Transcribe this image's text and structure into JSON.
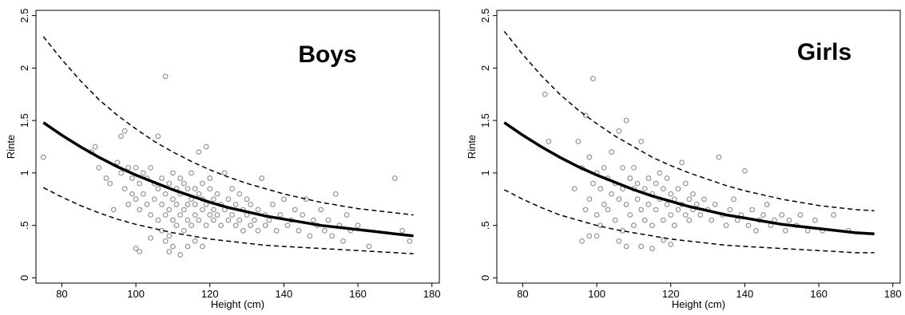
{
  "chart_data": [
    {
      "type": "scatter",
      "title": "Boys",
      "xlabel": "Height (cm)",
      "ylabel": "Rinte",
      "xlim": [
        73,
        182
      ],
      "ylim": [
        -0.05,
        2.55
      ],
      "xticks": [
        "80",
        "100",
        "120",
        "140",
        "160",
        "180"
      ],
      "yticks": [
        "0",
        ".5",
        "1",
        "1.5",
        "2",
        "2.5"
      ],
      "grid": false,
      "series": [
        {
          "kind": "points",
          "x": [
            75,
            88,
            89,
            90,
            92,
            93,
            94,
            95,
            96,
            96,
            97,
            97,
            98,
            98,
            99,
            99,
            100,
            100,
            101,
            101,
            102,
            102,
            103,
            103,
            104,
            104,
            105,
            105,
            106,
            106,
            106,
            107,
            107,
            107,
            108,
            108,
            108,
            109,
            109,
            109,
            110,
            110,
            110,
            111,
            111,
            111,
            112,
            112,
            112,
            113,
            113,
            113,
            114,
            114,
            114,
            115,
            115,
            115,
            116,
            116,
            116,
            117,
            117,
            117,
            118,
            118,
            118,
            119,
            119,
            119,
            120,
            120,
            120,
            121,
            121,
            121,
            122,
            122,
            123,
            123,
            124,
            124,
            125,
            125,
            126,
            126,
            127,
            127,
            128,
            128,
            129,
            129,
            130,
            130,
            131,
            131,
            132,
            133,
            133,
            134,
            135,
            135,
            136,
            137,
            138,
            139,
            140,
            141,
            142,
            143,
            144,
            145,
            146,
            147,
            148,
            149,
            150,
            151,
            152,
            153,
            154,
            155,
            156,
            157,
            158,
            160,
            163,
            170,
            172,
            174,
            108,
            104,
            109,
            110,
            112,
            101,
            114,
            100,
            116,
            118
          ],
          "y": [
            1.15,
            1.2,
            1.25,
            1.05,
            0.95,
            0.9,
            0.65,
            1.1,
            1.0,
            1.35,
            0.85,
            1.4,
            1.05,
            0.7,
            0.95,
            0.8,
            1.05,
            0.75,
            0.9,
            0.65,
            1.0,
            0.8,
            0.95,
            0.7,
            1.05,
            0.6,
            0.9,
            0.75,
            0.85,
            1.35,
            0.55,
            0.95,
            0.7,
            0.45,
            1.92,
            0.8,
            0.6,
            0.9,
            0.65,
            0.4,
            1.0,
            0.75,
            0.55,
            0.85,
            0.7,
            0.5,
            0.95,
            0.6,
            0.8,
            0.9,
            0.65,
            0.45,
            0.85,
            0.7,
            0.55,
            1.0,
            0.75,
            0.5,
            0.85,
            0.6,
            0.7,
            1.2,
            0.8,
            0.55,
            0.9,
            0.65,
            0.75,
            1.25,
            0.7,
            0.5,
            0.85,
            0.6,
            0.95,
            0.75,
            0.55,
            0.65,
            0.8,
            0.6,
            0.7,
            0.5,
            1.0,
            0.65,
            0.75,
            0.55,
            0.85,
            0.6,
            0.7,
            0.5,
            0.8,
            0.55,
            0.65,
            0.45,
            0.75,
            0.6,
            0.7,
            0.5,
            0.55,
            0.65,
            0.45,
            0.95,
            0.6,
            0.5,
            0.55,
            0.7,
            0.45,
            0.6,
            0.75,
            0.5,
            0.55,
            0.65,
            0.45,
            0.6,
            0.75,
            0.4,
            0.55,
            0.5,
            0.65,
            0.45,
            0.55,
            0.4,
            0.8,
            0.5,
            0.35,
            0.6,
            0.45,
            0.5,
            0.3,
            0.95,
            0.45,
            0.35,
            0.35,
            0.38,
            0.25,
            0.3,
            0.22,
            0.25,
            0.3,
            0.28,
            0.35,
            0.3
          ]
        },
        {
          "kind": "line",
          "style": "solid",
          "x": [
            75,
            80,
            85,
            90,
            95,
            100,
            105,
            110,
            115,
            120,
            125,
            130,
            135,
            140,
            145,
            150,
            155,
            160,
            165,
            170,
            175
          ],
          "y": [
            1.48,
            1.36,
            1.25,
            1.15,
            1.06,
            0.98,
            0.91,
            0.84,
            0.78,
            0.72,
            0.67,
            0.63,
            0.59,
            0.56,
            0.53,
            0.5,
            0.48,
            0.46,
            0.44,
            0.42,
            0.4
          ]
        },
        {
          "kind": "line",
          "style": "dashed",
          "x": [
            75,
            80,
            85,
            90,
            95,
            100,
            105,
            110,
            115,
            120,
            125,
            130,
            135,
            140,
            145,
            150,
            155,
            160,
            165,
            170,
            175
          ],
          "y": [
            2.3,
            2.08,
            1.88,
            1.7,
            1.55,
            1.42,
            1.3,
            1.2,
            1.11,
            1.03,
            0.96,
            0.9,
            0.85,
            0.8,
            0.76,
            0.72,
            0.69,
            0.66,
            0.64,
            0.62,
            0.6
          ]
        },
        {
          "kind": "line",
          "style": "dashed",
          "x": [
            75,
            80,
            85,
            90,
            95,
            100,
            105,
            110,
            115,
            120,
            125,
            130,
            135,
            140,
            145,
            150,
            155,
            160,
            165,
            170,
            175
          ],
          "y": [
            0.86,
            0.77,
            0.69,
            0.62,
            0.56,
            0.51,
            0.47,
            0.43,
            0.4,
            0.37,
            0.35,
            0.33,
            0.31,
            0.3,
            0.29,
            0.28,
            0.27,
            0.26,
            0.25,
            0.24,
            0.23
          ]
        }
      ]
    },
    {
      "type": "scatter",
      "title": "Girls",
      "xlabel": "Height (cm)",
      "ylabel": "Rinte",
      "xlim": [
        73,
        182
      ],
      "ylim": [
        -0.05,
        2.55
      ],
      "xticks": [
        "80",
        "100",
        "120",
        "140",
        "160",
        "180"
      ],
      "yticks": [
        "0",
        ".5",
        "1",
        "1.5",
        "2",
        "2.5"
      ],
      "grid": false,
      "series": [
        {
          "kind": "points",
          "x": [
            86,
            87,
            94,
            95,
            96,
            97,
            97,
            98,
            98,
            99,
            99,
            100,
            100,
            101,
            101,
            102,
            102,
            103,
            103,
            104,
            104,
            105,
            105,
            106,
            106,
            107,
            107,
            107,
            108,
            108,
            109,
            109,
            110,
            110,
            110,
            111,
            111,
            112,
            112,
            113,
            113,
            114,
            114,
            115,
            115,
            116,
            116,
            117,
            117,
            118,
            118,
            119,
            119,
            120,
            120,
            121,
            121,
            122,
            122,
            123,
            123,
            124,
            124,
            125,
            125,
            126,
            126,
            127,
            128,
            129,
            130,
            131,
            132,
            133,
            134,
            135,
            136,
            137,
            138,
            139,
            140,
            141,
            142,
            143,
            144,
            145,
            146,
            147,
            148,
            150,
            151,
            152,
            154,
            155,
            157,
            159,
            161,
            164,
            168,
            98,
            100,
            106,
            108,
            96,
            115,
            120,
            112,
            118
          ],
          "y": [
            1.75,
            1.3,
            0.85,
            1.3,
            1.05,
            0.65,
            1.55,
            1.15,
            0.75,
            1.9,
            0.9,
            1.0,
            0.6,
            0.85,
            0.5,
            1.05,
            0.7,
            0.95,
            0.65,
            1.2,
            0.8,
            0.9,
            0.55,
            1.4,
            0.75,
            1.05,
            0.85,
            0.45,
            1.5,
            0.7,
            0.95,
            0.6,
            0.85,
            1.05,
            0.5,
            0.75,
            0.9,
            1.3,
            0.65,
            0.85,
            0.55,
            0.95,
            0.7,
            0.8,
            0.5,
            0.9,
            0.65,
            1.0,
            0.75,
            0.85,
            0.55,
            0.7,
            0.95,
            0.8,
            0.6,
            0.75,
            0.5,
            0.85,
            0.65,
            1.1,
            0.7,
            0.6,
            0.9,
            0.75,
            0.55,
            0.65,
            0.8,
            0.7,
            0.6,
            0.75,
            0.65,
            0.55,
            0.7,
            1.15,
            0.6,
            0.5,
            0.65,
            0.75,
            0.55,
            0.6,
            1.02,
            0.5,
            0.65,
            0.45,
            0.55,
            0.6,
            0.7,
            0.5,
            0.55,
            0.6,
            0.45,
            0.55,
            0.5,
            0.6,
            0.45,
            0.55,
            0.45,
            0.6,
            0.45,
            0.4,
            0.4,
            0.35,
            0.3,
            0.35,
            0.28,
            0.32,
            0.3,
            0.36
          ]
        },
        {
          "kind": "line",
          "style": "solid",
          "x": [
            75,
            80,
            85,
            90,
            95,
            100,
            105,
            110,
            115,
            120,
            125,
            130,
            135,
            140,
            145,
            150,
            155,
            160,
            165,
            170,
            175
          ],
          "y": [
            1.48,
            1.36,
            1.25,
            1.15,
            1.06,
            0.98,
            0.91,
            0.84,
            0.78,
            0.73,
            0.68,
            0.64,
            0.6,
            0.57,
            0.54,
            0.51,
            0.49,
            0.47,
            0.45,
            0.43,
            0.42
          ]
        },
        {
          "kind": "line",
          "style": "dashed",
          "x": [
            75,
            80,
            85,
            90,
            95,
            100,
            105,
            110,
            115,
            120,
            125,
            130,
            135,
            140,
            145,
            150,
            155,
            160,
            165,
            170,
            175
          ],
          "y": [
            2.35,
            2.13,
            1.93,
            1.75,
            1.6,
            1.47,
            1.35,
            1.25,
            1.15,
            1.07,
            1.0,
            0.94,
            0.88,
            0.83,
            0.79,
            0.75,
            0.72,
            0.69,
            0.67,
            0.65,
            0.64
          ]
        },
        {
          "kind": "line",
          "style": "dashed",
          "x": [
            75,
            80,
            85,
            90,
            95,
            100,
            105,
            110,
            115,
            120,
            125,
            130,
            135,
            140,
            145,
            150,
            155,
            160,
            165,
            170,
            175
          ],
          "y": [
            0.84,
            0.75,
            0.67,
            0.6,
            0.55,
            0.5,
            0.46,
            0.43,
            0.4,
            0.37,
            0.35,
            0.33,
            0.31,
            0.3,
            0.29,
            0.28,
            0.27,
            0.26,
            0.25,
            0.24,
            0.24
          ]
        }
      ]
    }
  ]
}
